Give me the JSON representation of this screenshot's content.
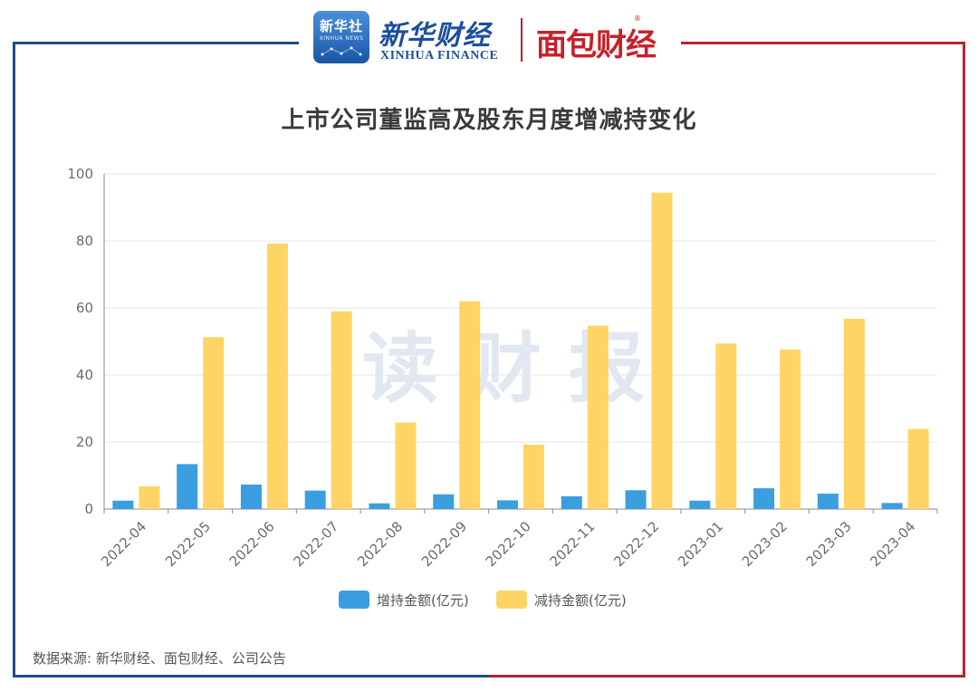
{
  "header": {
    "xinhua_box_title": "新华社",
    "xinhua_box_sub": "XINHUA NEWS",
    "xinhua_cn": "新华财经",
    "xinhua_en": "XINHUA FINANCE",
    "mianbao": "面包财经",
    "registered_mark": "®"
  },
  "watermark": "读财报",
  "source": "数据来源: 新华财经、面包财经、公司公告",
  "colors": {
    "increase": "#3a9ee0",
    "decrease": "#fed564",
    "frame_blue": "#1f4a8c",
    "frame_red": "#b3242e"
  },
  "chart_data": {
    "type": "bar",
    "title": "上市公司董监高及股东月度增减持变化",
    "xlabel": "",
    "ylabel": "",
    "ylim": [
      0,
      100
    ],
    "yticks": [
      0,
      20,
      40,
      60,
      80,
      100
    ],
    "grid": true,
    "legend_position": "bottom",
    "categories": [
      "2022-04",
      "2022-05",
      "2022-06",
      "2022-07",
      "2022-08",
      "2022-09",
      "2022-10",
      "2022-11",
      "2022-12",
      "2023-01",
      "2023-02",
      "2023-03",
      "2023-04"
    ],
    "series": [
      {
        "name": "增持金额(亿元)",
        "color": "#3a9ee0",
        "values": [
          2.5,
          13.4,
          7.3,
          5.5,
          1.7,
          4.4,
          2.6,
          3.8,
          5.6,
          2.5,
          6.2,
          4.6,
          1.8
        ]
      },
      {
        "name": "减持金额(亿元)",
        "color": "#fed564",
        "values": [
          6.8,
          51.3,
          79.2,
          59.0,
          25.8,
          62.0,
          19.2,
          54.7,
          94.4,
          49.4,
          47.6,
          56.8,
          23.9
        ]
      }
    ]
  }
}
